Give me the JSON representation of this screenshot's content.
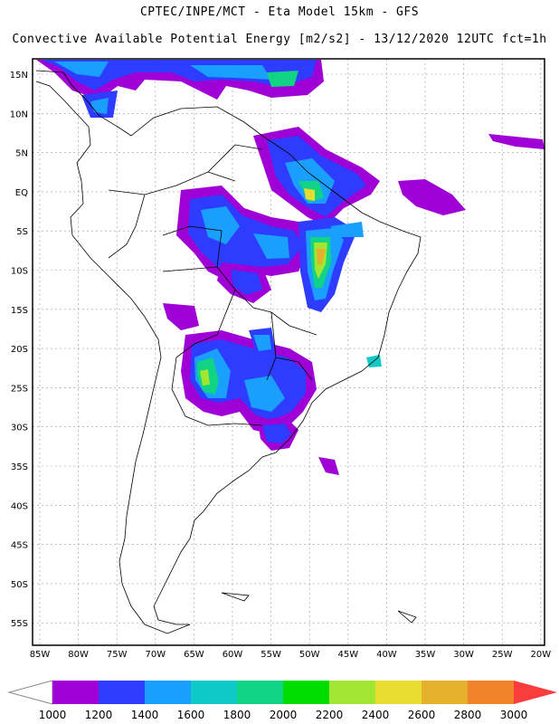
{
  "title_line1": "CPTEC/INPE/MCT -  Eta Model 15km - GFS",
  "title_line2": "Convective Available Potential Energy [m2/s2] - 13/12/2020 12UTC fct=1h",
  "lat_labels": [
    "15N",
    "10N",
    "5N",
    "EQ",
    "5S",
    "10S",
    "15S",
    "20S",
    "25S",
    "30S",
    "35S",
    "40S",
    "45S",
    "50S",
    "55S"
  ],
  "lon_labels": [
    "85W",
    "80W",
    "75W",
    "70W",
    "65W",
    "60W",
    "55W",
    "50W",
    "45W",
    "40W",
    "35W",
    "30W",
    "25W",
    "20W"
  ],
  "colorbar": {
    "colors": [
      "#9f00d6",
      "#2e3cff",
      "#1a9fff",
      "#0fc8c8",
      "#10d384",
      "#00dc00",
      "#a0e632",
      "#e6dc32",
      "#e6af2d",
      "#f08228",
      "#fa3c3c"
    ],
    "labels": [
      "1000",
      "1200",
      "1400",
      "1600",
      "1800",
      "2000",
      "2200",
      "2400",
      "2600",
      "2800",
      "3000"
    ]
  }
}
